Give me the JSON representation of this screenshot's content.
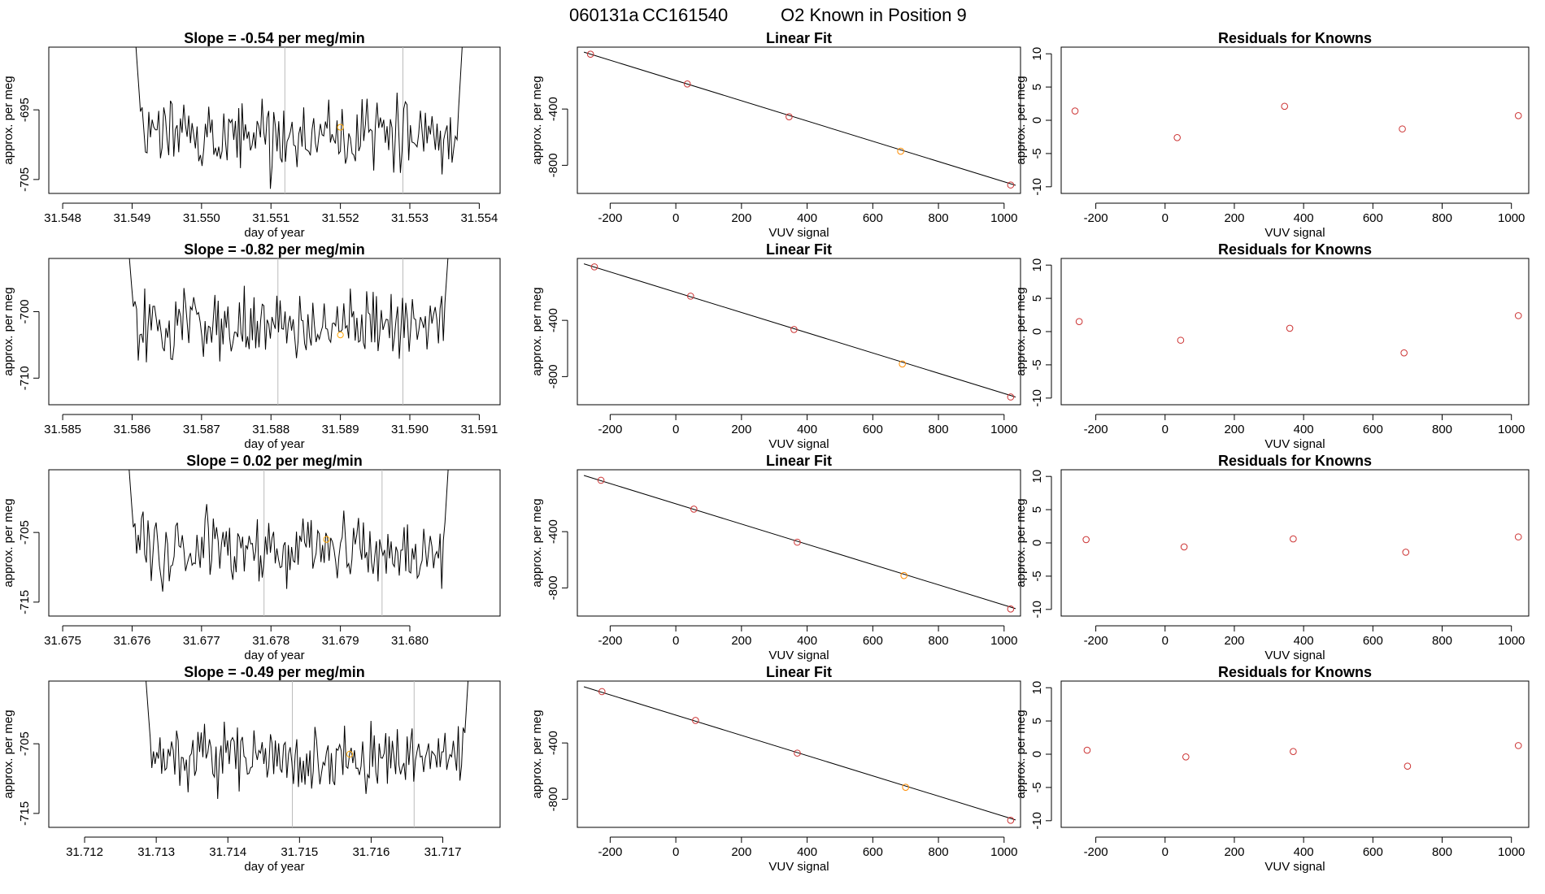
{
  "figure": {
    "title_parts": [
      "060131a",
      "CC161540",
      "O2 Known in Position  9"
    ]
  },
  "chart_data": [
    {
      "type": "line",
      "panel": "timeseries",
      "row": 1,
      "title": "Slope =  -0.54  per meg/min",
      "xlabel": "day of year",
      "ylabel": "approx. per meg",
      "xlim": [
        31.5478,
        31.5543
      ],
      "ylim": [
        -707,
        -686
      ],
      "xticks": [
        31.548,
        31.549,
        31.55,
        31.551,
        31.552,
        31.553,
        31.554
      ],
      "xtick_labels": [
        "31.548",
        "31.549",
        "31.550",
        "31.551",
        "31.552",
        "31.553",
        "31.554"
      ],
      "yticks": [
        -695,
        -705
      ],
      "ytick_labels": [
        "-695",
        "-705"
      ],
      "seg_start": 31.549,
      "seg_end": 31.5538,
      "base": -698.7,
      "noise": 2.6,
      "vlines": [
        31.5512,
        31.5529
      ],
      "marker": {
        "x": 31.552,
        "y": -697.5,
        "color": "#ffa500"
      }
    },
    {
      "type": "scatter",
      "panel": "linear-fit",
      "row": 1,
      "title": "Linear Fit",
      "xlabel": "VUV signal",
      "ylabel": "approx. per meg",
      "xlim": [
        -300,
        1050
      ],
      "ylim": [
        -1000,
        40
      ],
      "xticks": [
        -200,
        0,
        200,
        400,
        600,
        800,
        1000
      ],
      "xtick_labels": [
        "-200",
        "0",
        "200",
        "400",
        "600",
        "800",
        "1000"
      ],
      "yticks": [
        -400,
        -800
      ],
      "ytick_labels": [
        "-400",
        "-800"
      ],
      "x": [
        -260,
        35,
        345,
        685,
        1020
      ],
      "y": [
        -10,
        -222,
        -455,
        -700,
        -940
      ],
      "colors": [
        "#cc3333",
        "#cc3333",
        "#cc3333",
        "#ff8c00",
        "#cc3333"
      ],
      "fit": {
        "slope": -0.72,
        "intercept": -197
      }
    },
    {
      "type": "scatter",
      "panel": "residuals",
      "row": 1,
      "title": "Residuals for Knowns",
      "xlabel": "VUV signal",
      "ylabel": "approx. per meg",
      "xlim": [
        -300,
        1050
      ],
      "ylim": [
        -11,
        11
      ],
      "xticks": [
        -200,
        0,
        200,
        400,
        600,
        800,
        1000
      ],
      "xtick_labels": [
        "-200",
        "0",
        "200",
        "400",
        "600",
        "800",
        "1000"
      ],
      "yticks": [
        10,
        5,
        0,
        -5,
        -10
      ],
      "ytick_labels": [
        "10",
        "5",
        "0",
        "-5",
        "-10"
      ],
      "x": [
        -260,
        35,
        345,
        685,
        1020
      ],
      "y": [
        1.4,
        -2.6,
        2.1,
        -1.3,
        0.7
      ],
      "colors": [
        "#cc3333",
        "#cc3333",
        "#cc3333",
        "#cc3333",
        "#cc3333"
      ]
    },
    {
      "type": "line",
      "panel": "timeseries",
      "row": 2,
      "title": "Slope =  -0.82  per meg/min",
      "xlabel": "day of year",
      "ylabel": "approx. per meg",
      "xlim": [
        31.5848,
        31.5913
      ],
      "ylim": [
        -714,
        -692
      ],
      "xticks": [
        31.585,
        31.586,
        31.587,
        31.588,
        31.589,
        31.59,
        31.591
      ],
      "xtick_labels": [
        "31.585",
        "31.586",
        "31.587",
        "31.588",
        "31.589",
        "31.590",
        "31.591"
      ],
      "yticks": [
        -700,
        -710
      ],
      "ytick_labels": [
        "-700",
        "-710"
      ],
      "seg_start": 31.5859,
      "seg_end": 31.5906,
      "base": -702.3,
      "noise": 2.5,
      "vlines": [
        31.5881,
        31.5899
      ],
      "marker": {
        "x": 31.589,
        "y": -703.5,
        "color": "#ffa500"
      }
    },
    {
      "type": "scatter",
      "panel": "linear-fit",
      "row": 2,
      "title": "Linear Fit",
      "xlabel": "VUV signal",
      "ylabel": "approx. per meg",
      "xlim": [
        -300,
        1050
      ],
      "ylim": [
        -1000,
        40
      ],
      "xticks": [
        -200,
        0,
        200,
        400,
        600,
        800,
        1000
      ],
      "xtick_labels": [
        "-200",
        "0",
        "200",
        "400",
        "600",
        "800",
        "1000"
      ],
      "yticks": [
        -400,
        -800
      ],
      "ytick_labels": [
        "-400",
        "-800"
      ],
      "x": [
        -248,
        45,
        360,
        690,
        1020
      ],
      "y": [
        -20,
        -228,
        -465,
        -710,
        -945
      ],
      "colors": [
        "#cc3333",
        "#cc3333",
        "#cc3333",
        "#ff8c00",
        "#cc3333"
      ],
      "fit": {
        "slope": -0.72,
        "intercept": -200
      }
    },
    {
      "type": "scatter",
      "panel": "residuals",
      "row": 2,
      "title": "Residuals for Knowns",
      "xlabel": "VUV signal",
      "ylabel": "approx. per meg",
      "xlim": [
        -300,
        1050
      ],
      "ylim": [
        -11,
        11
      ],
      "xticks": [
        -200,
        0,
        200,
        400,
        600,
        800,
        1000
      ],
      "xtick_labels": [
        "-200",
        "0",
        "200",
        "400",
        "600",
        "800",
        "1000"
      ],
      "yticks": [
        10,
        5,
        0,
        -5,
        -10
      ],
      "ytick_labels": [
        "10",
        "5",
        "0",
        "-5",
        "-10"
      ],
      "x": [
        -248,
        45,
        360,
        690,
        1020
      ],
      "y": [
        1.5,
        -1.3,
        0.5,
        -3.2,
        2.4
      ],
      "colors": [
        "#cc3333",
        "#cc3333",
        "#cc3333",
        "#cc3333",
        "#cc3333"
      ]
    },
    {
      "type": "line",
      "panel": "timeseries",
      "row": 3,
      "title": "Slope =  0.02  per meg/min",
      "xlabel": "day of year",
      "ylabel": "approx. per meg",
      "xlim": [
        31.6748,
        31.6813
      ],
      "ylim": [
        -717,
        -696
      ],
      "xticks": [
        31.675,
        31.676,
        31.677,
        31.678,
        31.679,
        31.68
      ],
      "xtick_labels": [
        "31.675",
        "31.676",
        "31.677",
        "31.678",
        "31.679",
        "31.680"
      ],
      "yticks": [
        -705,
        -715
      ],
      "ytick_labels": [
        "-705",
        "-715"
      ],
      "seg_start": 31.6759,
      "seg_end": 31.6806,
      "base": -707.5,
      "noise": 2.5,
      "vlines": [
        31.6779,
        31.6796
      ],
      "marker": {
        "x": 31.6788,
        "y": -706.0,
        "color": "#ffa500"
      }
    },
    {
      "type": "scatter",
      "panel": "linear-fit",
      "row": 3,
      "title": "Linear Fit",
      "xlabel": "VUV signal",
      "ylabel": "approx. per meg",
      "xlim": [
        -300,
        1050
      ],
      "ylim": [
        -1000,
        40
      ],
      "xticks": [
        -200,
        0,
        200,
        400,
        600,
        800,
        1000
      ],
      "xtick_labels": [
        "-200",
        "0",
        "200",
        "400",
        "600",
        "800",
        "1000"
      ],
      "yticks": [
        -400,
        -800
      ],
      "ytick_labels": [
        "-400",
        "-800"
      ],
      "x": [
        -228,
        55,
        370,
        695,
        1020
      ],
      "y": [
        -35,
        -240,
        -475,
        -712,
        -950
      ],
      "colors": [
        "#cc3333",
        "#cc3333",
        "#cc3333",
        "#ff8c00",
        "#cc3333"
      ],
      "fit": {
        "slope": -0.72,
        "intercept": -202
      }
    },
    {
      "type": "scatter",
      "panel": "residuals",
      "row": 3,
      "title": "Residuals for Knowns",
      "xlabel": "VUV signal",
      "ylabel": "approx. per meg",
      "xlim": [
        -300,
        1050
      ],
      "ylim": [
        -11,
        11
      ],
      "xticks": [
        -200,
        0,
        200,
        400,
        600,
        800,
        1000
      ],
      "xtick_labels": [
        "-200",
        "0",
        "200",
        "400",
        "600",
        "800",
        "1000"
      ],
      "yticks": [
        10,
        5,
        0,
        -5,
        -10
      ],
      "ytick_labels": [
        "10",
        "5",
        "0",
        "-5",
        "-10"
      ],
      "x": [
        -228,
        55,
        370,
        695,
        1020
      ],
      "y": [
        0.5,
        -0.6,
        0.6,
        -1.4,
        0.9
      ],
      "colors": [
        "#cc3333",
        "#cc3333",
        "#cc3333",
        "#cc3333",
        "#cc3333"
      ]
    },
    {
      "type": "line",
      "panel": "timeseries",
      "row": 4,
      "title": "Slope =  -0.49  per meg/min",
      "xlabel": "day of year",
      "ylabel": "approx. per meg",
      "xlim": [
        31.7115,
        31.7178
      ],
      "ylim": [
        -717,
        -696
      ],
      "xticks": [
        31.712,
        31.713,
        31.714,
        31.715,
        31.716,
        31.717
      ],
      "xtick_labels": [
        "31.712",
        "31.713",
        "31.714",
        "31.715",
        "31.716",
        "31.717"
      ],
      "yticks": [
        -705,
        -715
      ],
      "ytick_labels": [
        "-705",
        "-715"
      ],
      "seg_start": 31.7128,
      "seg_end": 31.7174,
      "base": -707.3,
      "noise": 2.4,
      "vlines": [
        31.7149,
        31.7166
      ],
      "marker": {
        "x": 31.7157,
        "y": -706.5,
        "color": "#ffa500"
      }
    },
    {
      "type": "scatter",
      "panel": "linear-fit",
      "row": 4,
      "title": "Linear Fit",
      "xlabel": "VUV signal",
      "ylabel": "approx. per meg",
      "xlim": [
        -300,
        1050
      ],
      "ylim": [
        -1000,
        40
      ],
      "xticks": [
        -200,
        0,
        200,
        400,
        600,
        800,
        1000
      ],
      "xtick_labels": [
        "-200",
        "0",
        "200",
        "400",
        "600",
        "800",
        "1000"
      ],
      "yticks": [
        -400,
        -800
      ],
      "ytick_labels": [
        "-400",
        "-800"
      ],
      "x": [
        -225,
        60,
        370,
        700,
        1020
      ],
      "y": [
        -35,
        -240,
        -472,
        -715,
        -950
      ],
      "colors": [
        "#cc3333",
        "#cc3333",
        "#cc3333",
        "#ff8c00",
        "#cc3333"
      ],
      "fit": {
        "slope": -0.72,
        "intercept": -202
      }
    },
    {
      "type": "scatter",
      "panel": "residuals",
      "row": 4,
      "title": "Residuals for Knowns",
      "xlabel": "VUV signal",
      "ylabel": "approx. per meg",
      "xlim": [
        -300,
        1050
      ],
      "ylim": [
        -11,
        11
      ],
      "xticks": [
        -200,
        0,
        200,
        400,
        600,
        800,
        1000
      ],
      "xtick_labels": [
        "-200",
        "0",
        "200",
        "400",
        "600",
        "800",
        "1000"
      ],
      "yticks": [
        10,
        5,
        0,
        -5,
        -10
      ],
      "ytick_labels": [
        "10",
        "5",
        "0",
        "-5",
        "-10"
      ],
      "x": [
        -225,
        60,
        370,
        700,
        1020
      ],
      "y": [
        0.6,
        -0.4,
        0.4,
        -1.8,
        1.3
      ],
      "colors": [
        "#cc3333",
        "#cc3333",
        "#cc3333",
        "#cc3333",
        "#cc3333"
      ]
    }
  ]
}
